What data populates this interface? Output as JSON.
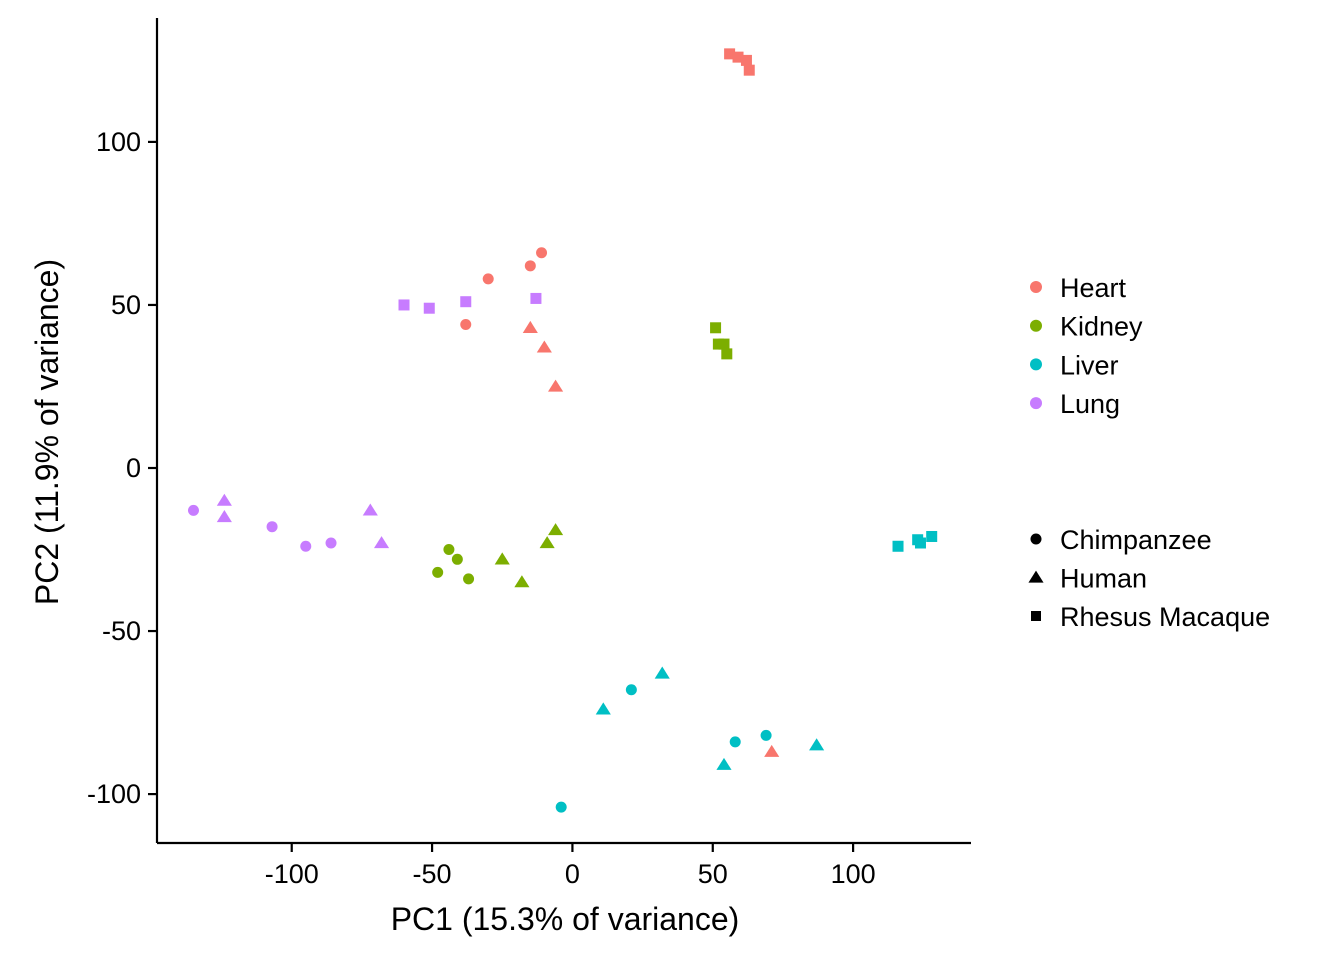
{
  "chart_data": {
    "type": "scatter",
    "xlabel": "PC1 (15.3% of variance)",
    "ylabel": "PC2 (11.9% of variance)",
    "xlim": [
      -148,
      142
    ],
    "ylim": [
      -115,
      138
    ],
    "xticks": [
      -100,
      -50,
      0,
      50,
      100
    ],
    "xtick_labels": [
      "-100",
      "-50",
      "0",
      "50",
      "100"
    ],
    "yticks": [
      -100,
      -50,
      0,
      50,
      100
    ],
    "ytick_labels": [
      "-100",
      "-50",
      "0",
      "50",
      "100"
    ],
    "grid": false,
    "legend_placement": "right",
    "color_legend": [
      {
        "name": "Heart",
        "color": "#F8766D"
      },
      {
        "name": "Kidney",
        "color": "#7CAE00"
      },
      {
        "name": "Liver",
        "color": "#00BFC4"
      },
      {
        "name": "Lung",
        "color": "#C77CFF"
      }
    ],
    "shape_legend": [
      {
        "name": "Chimpanzee",
        "shape": "circle"
      },
      {
        "name": "Human",
        "shape": "triangle"
      },
      {
        "name": "Rhesus Macaque",
        "shape": "square"
      }
    ],
    "points": [
      {
        "tissue": "Heart",
        "species": "Chimpanzee",
        "x": -11,
        "y": 66
      },
      {
        "tissue": "Heart",
        "species": "Chimpanzee",
        "x": -15,
        "y": 62
      },
      {
        "tissue": "Heart",
        "species": "Chimpanzee",
        "x": -30,
        "y": 58
      },
      {
        "tissue": "Heart",
        "species": "Chimpanzee",
        "x": -38,
        "y": 44
      },
      {
        "tissue": "Heart",
        "species": "Human",
        "x": -15,
        "y": 43
      },
      {
        "tissue": "Heart",
        "species": "Human",
        "x": -10,
        "y": 37
      },
      {
        "tissue": "Heart",
        "species": "Human",
        "x": -6,
        "y": 25
      },
      {
        "tissue": "Heart",
        "species": "Human",
        "x": 71,
        "y": -87
      },
      {
        "tissue": "Heart",
        "species": "Rhesus Macaque",
        "x": 56,
        "y": 127
      },
      {
        "tissue": "Heart",
        "species": "Rhesus Macaque",
        "x": 59,
        "y": 126
      },
      {
        "tissue": "Heart",
        "species": "Rhesus Macaque",
        "x": 62,
        "y": 125
      },
      {
        "tissue": "Heart",
        "species": "Rhesus Macaque",
        "x": 63,
        "y": 122
      },
      {
        "tissue": "Kidney",
        "species": "Chimpanzee",
        "x": -44,
        "y": -25
      },
      {
        "tissue": "Kidney",
        "species": "Chimpanzee",
        "x": -41,
        "y": -28
      },
      {
        "tissue": "Kidney",
        "species": "Chimpanzee",
        "x": -48,
        "y": -32
      },
      {
        "tissue": "Kidney",
        "species": "Chimpanzee",
        "x": -37,
        "y": -34
      },
      {
        "tissue": "Kidney",
        "species": "Human",
        "x": -25,
        "y": -28
      },
      {
        "tissue": "Kidney",
        "species": "Human",
        "x": -18,
        "y": -35
      },
      {
        "tissue": "Kidney",
        "species": "Human",
        "x": -9,
        "y": -23
      },
      {
        "tissue": "Kidney",
        "species": "Human",
        "x": -6,
        "y": -19
      },
      {
        "tissue": "Kidney",
        "species": "Rhesus Macaque",
        "x": 51,
        "y": 43
      },
      {
        "tissue": "Kidney",
        "species": "Rhesus Macaque",
        "x": 52,
        "y": 38
      },
      {
        "tissue": "Kidney",
        "species": "Rhesus Macaque",
        "x": 54,
        "y": 38
      },
      {
        "tissue": "Kidney",
        "species": "Rhesus Macaque",
        "x": 55,
        "y": 35
      },
      {
        "tissue": "Liver",
        "species": "Chimpanzee",
        "x": 21,
        "y": -68
      },
      {
        "tissue": "Liver",
        "species": "Chimpanzee",
        "x": 58,
        "y": -84
      },
      {
        "tissue": "Liver",
        "species": "Chimpanzee",
        "x": 69,
        "y": -82
      },
      {
        "tissue": "Liver",
        "species": "Chimpanzee",
        "x": -4,
        "y": -104
      },
      {
        "tissue": "Liver",
        "species": "Human",
        "x": 32,
        "y": -63
      },
      {
        "tissue": "Liver",
        "species": "Human",
        "x": 11,
        "y": -74
      },
      {
        "tissue": "Liver",
        "species": "Human",
        "x": 54,
        "y": -91
      },
      {
        "tissue": "Liver",
        "species": "Human",
        "x": 87,
        "y": -85
      },
      {
        "tissue": "Liver",
        "species": "Rhesus Macaque",
        "x": 116,
        "y": -24
      },
      {
        "tissue": "Liver",
        "species": "Rhesus Macaque",
        "x": 123,
        "y": -22
      },
      {
        "tissue": "Liver",
        "species": "Rhesus Macaque",
        "x": 124,
        "y": -23
      },
      {
        "tissue": "Liver",
        "species": "Rhesus Macaque",
        "x": 128,
        "y": -21
      },
      {
        "tissue": "Lung",
        "species": "Chimpanzee",
        "x": -135,
        "y": -13
      },
      {
        "tissue": "Lung",
        "species": "Chimpanzee",
        "x": -107,
        "y": -18
      },
      {
        "tissue": "Lung",
        "species": "Chimpanzee",
        "x": -95,
        "y": -24
      },
      {
        "tissue": "Lung",
        "species": "Chimpanzee",
        "x": -86,
        "y": -23
      },
      {
        "tissue": "Lung",
        "species": "Human",
        "x": -124,
        "y": -10
      },
      {
        "tissue": "Lung",
        "species": "Human",
        "x": -124,
        "y": -15
      },
      {
        "tissue": "Lung",
        "species": "Human",
        "x": -72,
        "y": -13
      },
      {
        "tissue": "Lung",
        "species": "Human",
        "x": -68,
        "y": -23
      },
      {
        "tissue": "Lung",
        "species": "Rhesus Macaque",
        "x": -60,
        "y": 50
      },
      {
        "tissue": "Lung",
        "species": "Rhesus Macaque",
        "x": -51,
        "y": 49
      },
      {
        "tissue": "Lung",
        "species": "Rhesus Macaque",
        "x": -38,
        "y": 51
      },
      {
        "tissue": "Lung",
        "species": "Rhesus Macaque",
        "x": -13,
        "y": 52
      }
    ]
  }
}
